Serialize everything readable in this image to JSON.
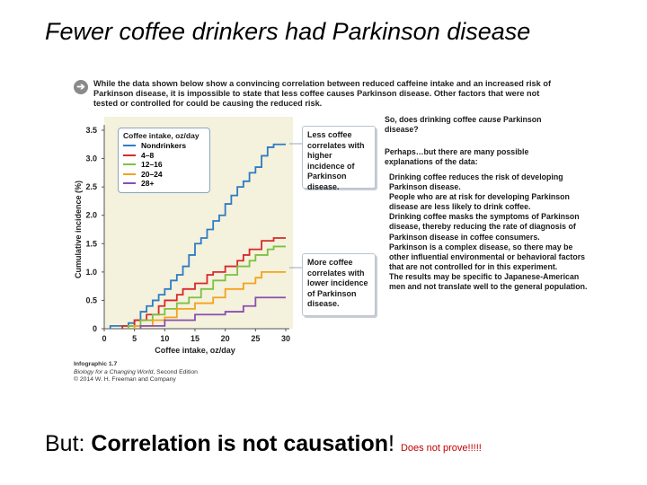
{
  "slide": {
    "title": "Fewer coffee drinkers had Parkinson disease",
    "bottom_prefix": "But: ",
    "bottom_bold": "Correlation is not causation",
    "bottom_exclaim": "! ",
    "bottom_small": "Does not prove!!!!!"
  },
  "figure": {
    "intro_icon": "arrow-right-circle-icon",
    "intro_text": "While the data shown below show a convincing correlation between reduced caffeine intake and an increased risk of Parkinson disease, it is impossible to state that less coffee causes Parkinson disease. Other factors that were not tested or controlled for could be causing the reduced risk.",
    "callout_top": "Less coffee correlates with higher incidence of Parkinson disease.",
    "callout_bottom": "More coffee correlates with lower incidence of Parkinson disease.",
    "question_prefix": "So, does drinking coffee ",
    "question_italic": "cause",
    "question_suffix": " Parkinson disease?",
    "perhaps": "Perhaps…but there are many possible explanations of the data:",
    "explanations": [
      "Drinking coffee reduces the risk of developing Parkinson disease.",
      "People who are at risk for developing Parkinson disease are less likely to drink coffee.",
      "Drinking coffee masks the symptoms of Parkinson disease, thereby reducing the rate of diagnosis of Parkinson disease in coffee consumers.",
      "Parkinson is a complex disease, so there may be other influential environmental or behavioral factors that are not controlled for in this experiment.",
      "The results may be specific to Japanese-American men and not translate well to the general population."
    ],
    "credit_title": "Infographic 1.7",
    "credit_book": "Biology for a Changing World",
    "credit_edition": ", Second Edition",
    "credit_copy": "© 2014 W. H. Freeman and Company"
  },
  "chart_data": {
    "type": "line",
    "title": "",
    "xlabel": "Coffee intake, oz/day",
    "ylabel": "Cumulative incidence (%)",
    "xlim": [
      0,
      30
    ],
    "ylim": [
      0,
      3.5
    ],
    "xticks": [
      0,
      5,
      10,
      15,
      20,
      25,
      30
    ],
    "yticks": [
      0,
      0.5,
      1.0,
      1.5,
      2.0,
      2.5,
      3.0,
      3.5
    ],
    "ytick_labels": [
      "0",
      "0.5",
      "1.0",
      "1.5",
      "2.0",
      "2.5",
      "3.0",
      "3.5"
    ],
    "legend_title": "Coffee intake, oz/day",
    "legend_position": "top-left",
    "grid": false,
    "series": [
      {
        "name": "Nondrinkers",
        "color": "#2e7cc4",
        "x": [
          1,
          4,
          5,
          6,
          7,
          8,
          9,
          10,
          11,
          12,
          13,
          14,
          15,
          16,
          17,
          18,
          19,
          20,
          21,
          22,
          23,
          24,
          25,
          26,
          27,
          28,
          30
        ],
        "y": [
          0.05,
          0.1,
          0.15,
          0.3,
          0.4,
          0.5,
          0.6,
          0.7,
          0.85,
          0.95,
          1.1,
          1.3,
          1.5,
          1.6,
          1.75,
          1.9,
          2.0,
          2.2,
          2.35,
          2.5,
          2.6,
          2.75,
          2.85,
          3.05,
          3.2,
          3.25,
          3.25
        ]
      },
      {
        "name": "4–8",
        "color": "#d62a2a",
        "x": [
          3,
          5,
          7,
          9,
          10,
          12,
          13,
          15,
          17,
          18,
          20,
          22,
          23,
          24,
          26,
          28,
          30
        ],
        "y": [
          0.05,
          0.15,
          0.25,
          0.4,
          0.5,
          0.6,
          0.7,
          0.8,
          0.95,
          1.0,
          1.1,
          1.2,
          1.3,
          1.4,
          1.55,
          1.6,
          1.6
        ]
      },
      {
        "name": "12–16",
        "color": "#7cc142",
        "x": [
          4,
          6,
          8,
          10,
          12,
          14,
          16,
          18,
          20,
          22,
          24,
          25,
          27,
          28,
          30
        ],
        "y": [
          0.05,
          0.15,
          0.25,
          0.35,
          0.45,
          0.55,
          0.7,
          0.85,
          0.95,
          1.1,
          1.2,
          1.3,
          1.4,
          1.45,
          1.45
        ]
      },
      {
        "name": "20–24",
        "color": "#f4a21d",
        "x": [
          5,
          8,
          10,
          12,
          15,
          18,
          20,
          23,
          25,
          26,
          30
        ],
        "y": [
          0.05,
          0.15,
          0.2,
          0.35,
          0.45,
          0.55,
          0.7,
          0.8,
          0.9,
          1.0,
          1.0
        ]
      },
      {
        "name": "28+",
        "color": "#8a4fb0",
        "x": [
          6,
          10,
          15,
          20,
          23,
          25,
          30
        ],
        "y": [
          0.05,
          0.15,
          0.25,
          0.3,
          0.4,
          0.55,
          0.55
        ]
      }
    ]
  }
}
